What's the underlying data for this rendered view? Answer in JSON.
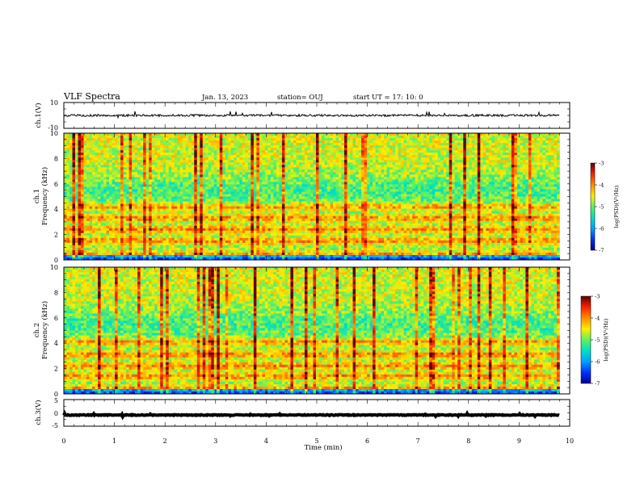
{
  "header": {
    "title": "VLF Spectra",
    "date": "Jan. 13, 2023",
    "station": "station= OUJ",
    "start_time": "start UT =  17: 10: 0"
  },
  "colorbar": {
    "label": "log(PSD)(V²/Hz)",
    "ticks": [
      "-3",
      "-4",
      "-5",
      "-6",
      "-7"
    ],
    "colors": [
      "#5a0000",
      "#ff2000",
      "#ff8c00",
      "#ffee00",
      "#60f060",
      "#00e0c0",
      "#00a0ff",
      "#0030ff",
      "#000090"
    ]
  },
  "chart_data": [
    {
      "type": "line",
      "name": "ch1-waveform",
      "ylabel": "ch.1(V)",
      "ylim": [
        -10,
        10
      ],
      "yticks": [
        "10",
        "-10"
      ],
      "xlim": [
        0,
        10
      ],
      "waveform": {
        "baseline": 0.0,
        "amplitude": 0.8,
        "color": "#000000"
      }
    },
    {
      "type": "heatmap",
      "name": "ch1-spectrogram",
      "ylabel": [
        "ch.1",
        "Frequency (kHz)"
      ],
      "ylim": [
        0,
        10
      ],
      "yticks": [
        "0",
        "2",
        "4",
        "6",
        "8",
        "10"
      ],
      "xlim": [
        0,
        10
      ],
      "data_extent_min": 9.8,
      "clim": [
        -7,
        -3
      ],
      "bands_khz": [
        0.4,
        1.5,
        2.4,
        3.3,
        4.2
      ],
      "seed": 11
    },
    {
      "type": "heatmap",
      "name": "ch2-spectrogram",
      "ylabel": [
        "ch.2",
        "Frequency (kHz)"
      ],
      "ylim": [
        0,
        10
      ],
      "yticks": [
        "0",
        "2",
        "4",
        "6",
        "8",
        "10"
      ],
      "xlim": [
        0,
        10
      ],
      "data_extent_min": 9.8,
      "clim": [
        -7,
        -3
      ],
      "bands_khz": [
        0.4,
        1.4,
        2.2,
        3.1,
        4.1
      ],
      "seed": 23
    },
    {
      "type": "line",
      "name": "ch3-waveform",
      "ylabel": "ch.3(V)",
      "ylim": [
        -5,
        5
      ],
      "yticks": [
        "5",
        "0",
        "-5"
      ],
      "xlim": [
        0,
        10
      ],
      "waveform": {
        "baseline": -0.8,
        "amplitude": 0.15,
        "color": "#000000"
      }
    }
  ],
  "xaxis": {
    "label": "Time (min)",
    "ticks": [
      "0",
      "1",
      "2",
      "3",
      "4",
      "5",
      "6",
      "7",
      "8",
      "9",
      "10"
    ]
  }
}
